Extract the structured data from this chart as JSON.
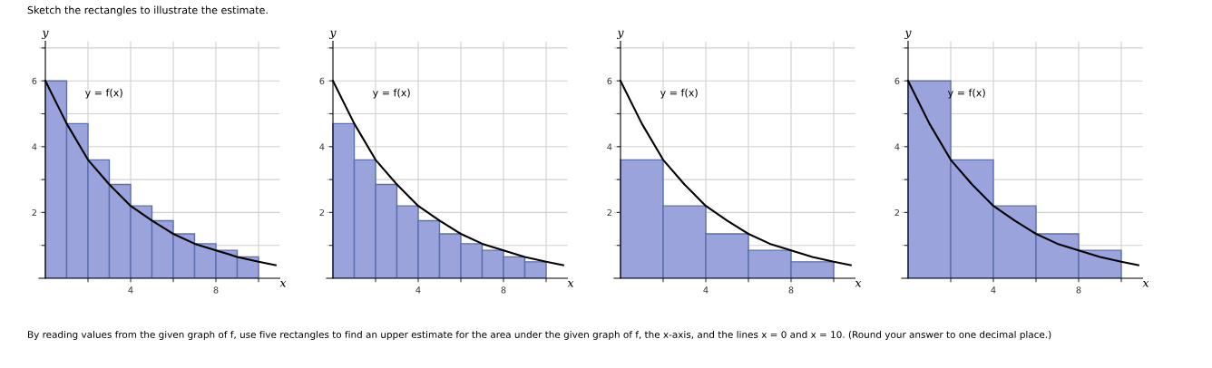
{
  "chart_data": [
    {
      "type": "histogram",
      "title": "Sketch the rectangles to illustrate the estimate.",
      "annotations": [
        "y = f(x)",
        "By reading values from the given graph of f, use five rectangles to find an upper estimate for the area under the given graph of f, the x-axis, and the lines x = 0 and x = 10. (Round your answer to one decimal place.)"
      ],
      "xlabel": "x",
      "ylabel": "y",
      "xlim": [
        -0.3,
        11
      ],
      "ylim": [
        0,
        7.2
      ],
      "xticks": [
        {
          "value": 2,
          "label": null
        },
        4,
        {
          "value": 6,
          "label": null
        },
        8,
        {
          "value": 10,
          "label": null
        }
      ],
      "yticks": [
        {
          "value": 1,
          "label": null
        },
        2,
        {
          "value": 3,
          "label": null
        },
        4,
        {
          "value": 5,
          "label": null
        },
        6,
        {
          "value": 7,
          "label": null
        }
      ],
      "grid": true,
      "series": [
        {
          "color": "#9aa3dc",
          "bins": [
            0,
            1,
            2,
            3,
            4,
            5,
            6,
            7,
            8,
            9,
            10
          ],
          "values": [
            6,
            4.7,
            3.6,
            2.85,
            2.2,
            1.75,
            1.35,
            1.05,
            0.85,
            0.65
          ]
        },
        {
          "type": "line",
          "color": "#000000",
          "x": [
            0,
            1,
            2,
            3,
            4,
            5,
            6,
            7,
            8,
            9,
            10,
            10.8
          ],
          "values": [
            6,
            4.7,
            3.6,
            2.85,
            2.2,
            1.75,
            1.35,
            1.05,
            0.85,
            0.65,
            0.5,
            0.4
          ]
        }
      ]
    },
    {
      "type": "histogram",
      "annotations": [
        "y = f(x)"
      ],
      "xlabel": "x",
      "ylabel": "y",
      "xlim": [
        -0.3,
        11
      ],
      "ylim": [
        0,
        7.2
      ],
      "xticks": [
        {
          "value": 2,
          "label": null
        },
        4,
        {
          "value": 6,
          "label": null
        },
        8,
        {
          "value": 10,
          "label": null
        }
      ],
      "yticks": [
        {
          "value": 1,
          "label": null
        },
        2,
        {
          "value": 3,
          "label": null
        },
        4,
        {
          "value": 5,
          "label": null
        },
        6,
        {
          "value": 7,
          "label": null
        }
      ],
      "grid": true,
      "series": [
        {
          "color": "#9aa3dc",
          "bins": [
            0,
            1,
            2,
            3,
            4,
            5,
            6,
            7,
            8,
            9,
            10
          ],
          "values": [
            4.7,
            3.6,
            2.85,
            2.2,
            1.75,
            1.35,
            1.05,
            0.85,
            0.65,
            0.5
          ]
        },
        {
          "type": "line",
          "color": "#000000",
          "x": [
            0,
            1,
            2,
            3,
            4,
            5,
            6,
            7,
            8,
            9,
            10,
            10.8
          ],
          "values": [
            6,
            4.7,
            3.6,
            2.85,
            2.2,
            1.75,
            1.35,
            1.05,
            0.85,
            0.65,
            0.5,
            0.4
          ]
        }
      ]
    },
    {
      "type": "histogram",
      "annotations": [
        "y = f(x)"
      ],
      "xlabel": "x",
      "ylabel": "y",
      "xlim": [
        -0.3,
        11
      ],
      "ylim": [
        0,
        7.2
      ],
      "xticks": [
        {
          "value": 2,
          "label": null
        },
        4,
        {
          "value": 6,
          "label": null
        },
        8,
        {
          "value": 10,
          "label": null
        }
      ],
      "yticks": [
        {
          "value": 1,
          "label": null
        },
        2,
        {
          "value": 3,
          "label": null
        },
        4,
        {
          "value": 5,
          "label": null
        },
        6,
        {
          "value": 7,
          "label": null
        }
      ],
      "grid": true,
      "series": [
        {
          "color": "#9aa3dc",
          "bins": [
            0,
            2,
            4,
            6,
            8,
            10
          ],
          "values": [
            3.6,
            2.2,
            1.35,
            0.85,
            0.5
          ]
        },
        {
          "type": "line",
          "color": "#000000",
          "x": [
            0,
            1,
            2,
            3,
            4,
            5,
            6,
            7,
            8,
            9,
            10,
            10.8
          ],
          "values": [
            6,
            4.7,
            3.6,
            2.85,
            2.2,
            1.75,
            1.35,
            1.05,
            0.85,
            0.65,
            0.5,
            0.4
          ]
        }
      ]
    },
    {
      "type": "histogram",
      "annotations": [
        "y = f(x)"
      ],
      "xlabel": "x",
      "ylabel": "y",
      "xlim": [
        -0.3,
        11
      ],
      "ylim": [
        0,
        7.2
      ],
      "xticks": [
        {
          "value": 2,
          "label": null
        },
        4,
        {
          "value": 6,
          "label": null
        },
        8,
        {
          "value": 10,
          "label": null
        }
      ],
      "yticks": [
        {
          "value": 1,
          "label": null
        },
        2,
        {
          "value": 3,
          "label": null
        },
        4,
        {
          "value": 5,
          "label": null
        },
        6,
        {
          "value": 7,
          "label": null
        }
      ],
      "grid": true,
      "series": [
        {
          "color": "#9aa3dc",
          "bins": [
            0,
            2,
            4,
            6,
            8,
            10
          ],
          "values": [
            6,
            3.6,
            2.2,
            1.35,
            0.85
          ]
        },
        {
          "type": "line",
          "color": "#000000",
          "x": [
            0,
            1,
            2,
            3,
            4,
            5,
            6,
            7,
            8,
            9,
            10,
            10.8
          ],
          "values": [
            6,
            4.7,
            3.6,
            2.85,
            2.2,
            1.75,
            1.35,
            1.05,
            0.85,
            0.65,
            0.5,
            0.4
          ]
        }
      ]
    }
  ]
}
